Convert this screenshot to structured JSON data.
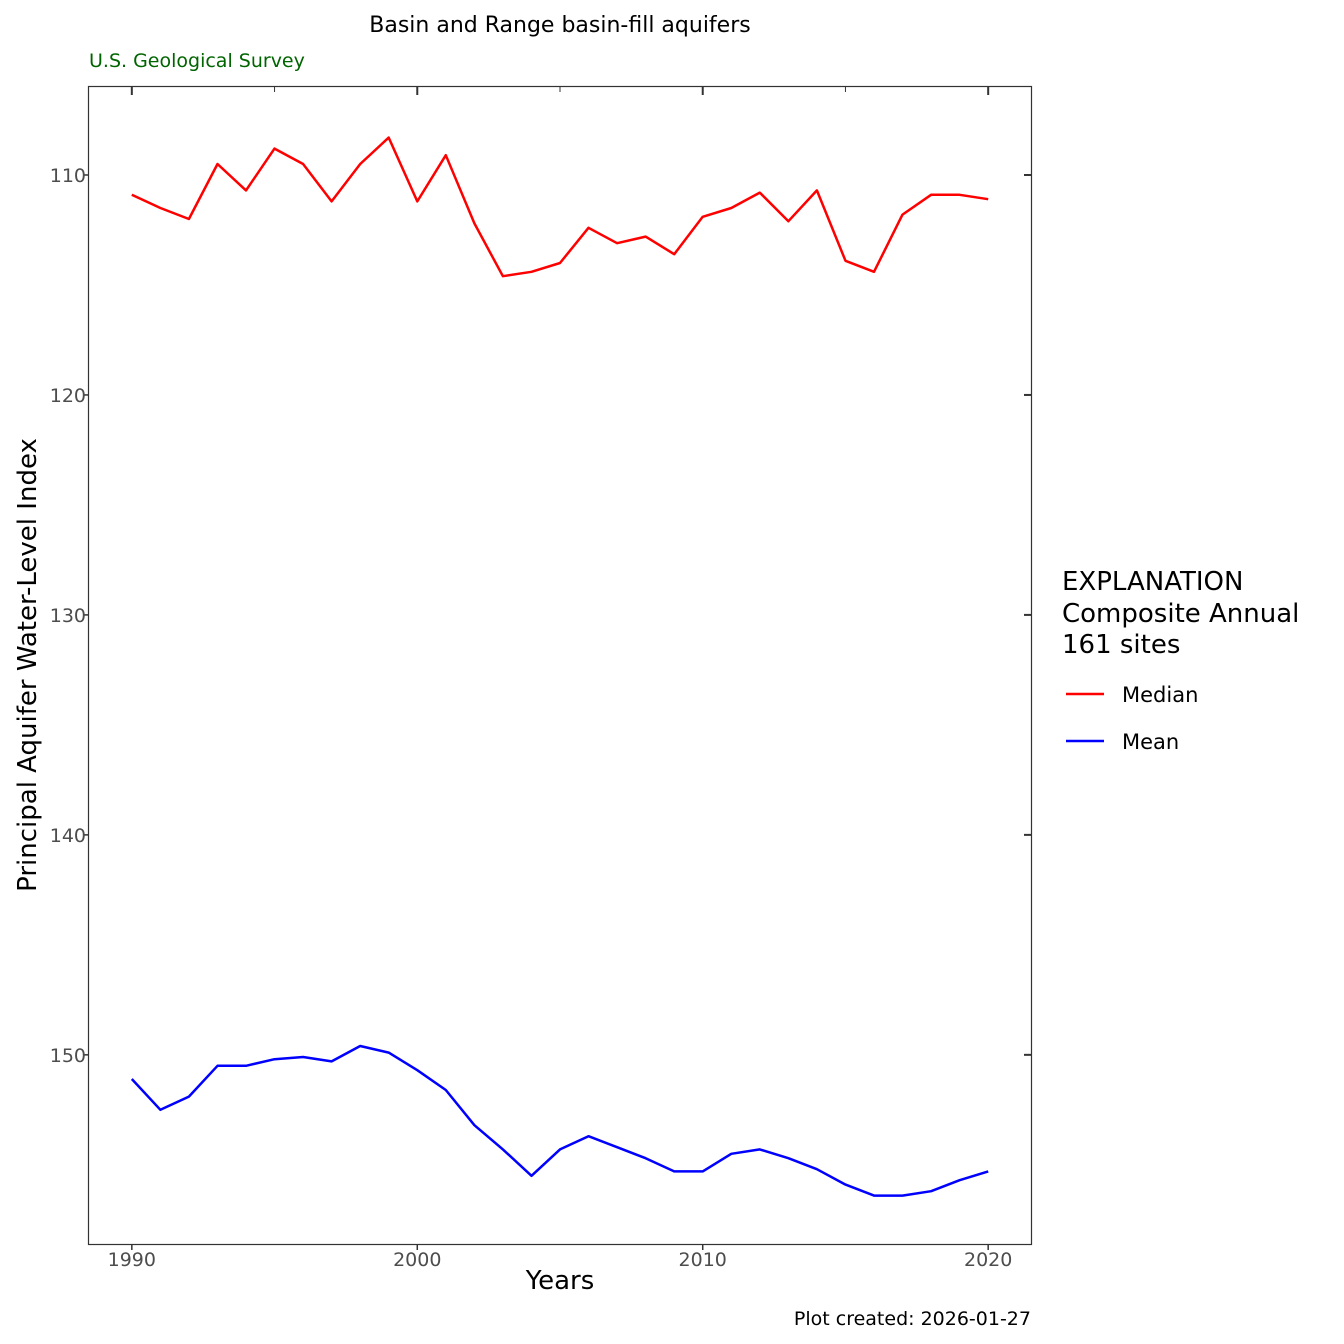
{
  "chart_data": {
    "type": "line",
    "title": "Basin and Range basin-fill aquifers",
    "subtitle": "U.S. Geological Survey",
    "xlabel": "Years",
    "ylabel": "Principal Aquifer Water-Level Index",
    "caption": "Plot created: 2026-01-27",
    "xlim": [
      1988.5,
      2021.5
    ],
    "ylim": [
      106,
      158.6
    ],
    "y_reversed": true,
    "x_ticks": [
      1990,
      2000,
      2010,
      2020
    ],
    "y_ticks": [
      110,
      120,
      130,
      140,
      150
    ],
    "x_minor_ticks": [
      1995,
      2005,
      2015
    ],
    "legend": {
      "placement": "right",
      "title_lines": [
        "EXPLANATION",
        "Composite Annual",
        "161 sites"
      ]
    },
    "x": [
      1990,
      1991,
      1992,
      1993,
      1994,
      1995,
      1996,
      1997,
      1998,
      1999,
      2000,
      2001,
      2002,
      2003,
      2004,
      2005,
      2006,
      2007,
      2008,
      2009,
      2010,
      2011,
      2012,
      2013,
      2014,
      2015,
      2016,
      2017,
      2018,
      2019,
      2020
    ],
    "series": [
      {
        "name": "Median",
        "color": "#ff0000",
        "values": [
          110.9,
          111.5,
          112.0,
          109.5,
          110.7,
          108.8,
          109.5,
          111.2,
          109.5,
          108.3,
          111.2,
          109.1,
          112.2,
          114.6,
          114.4,
          114.0,
          112.4,
          113.1,
          112.8,
          113.6,
          111.9,
          111.5,
          110.8,
          112.1,
          110.7,
          113.9,
          114.4,
          111.8,
          110.9,
          110.9,
          111.1
        ]
      },
      {
        "name": "Mean",
        "color": "#0000ff",
        "values": [
          151.1,
          152.5,
          151.9,
          150.5,
          150.5,
          150.2,
          150.1,
          150.3,
          149.6,
          149.9,
          150.7,
          151.6,
          153.2,
          154.3,
          155.5,
          154.3,
          153.7,
          154.2,
          154.7,
          155.3,
          155.3,
          154.5,
          154.3,
          154.7,
          155.2,
          155.9,
          156.4,
          156.4,
          156.2,
          155.7,
          155.3
        ]
      }
    ]
  }
}
